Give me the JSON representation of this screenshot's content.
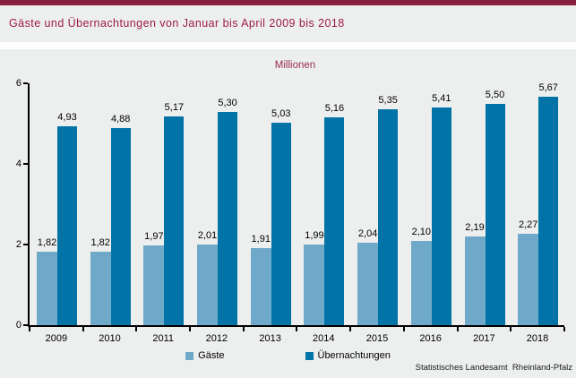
{
  "header": {
    "title": "Gäste und Übernachtungen von Januar bis April 2009 bis 2018"
  },
  "chart_data": {
    "type": "bar",
    "title": "Gäste und Übernachtungen von Januar bis April 2009 bis 2018",
    "unit_label": "Millionen",
    "categories": [
      "2009",
      "2010",
      "2011",
      "2012",
      "2013",
      "2014",
      "2015",
      "2016",
      "2017",
      "2018"
    ],
    "series": [
      {
        "name": "Gäste",
        "color": "#6FA9C9",
        "values": [
          1.82,
          1.82,
          1.97,
          2.01,
          1.91,
          1.99,
          2.04,
          2.1,
          2.19,
          2.27
        ]
      },
      {
        "name": "Übernachtungen",
        "color": "#0173A6",
        "values": [
          4.93,
          4.88,
          5.17,
          5.3,
          5.03,
          5.16,
          5.35,
          5.41,
          5.5,
          5.67
        ]
      }
    ],
    "value_labels": {
      "decimal_separator": ",",
      "decimals": 2
    },
    "xlabel": "",
    "ylabel": "",
    "ylim": [
      0,
      6
    ],
    "yticks": [
      0,
      2,
      4,
      6
    ],
    "grid": false,
    "legend_position": "bottom"
  },
  "footer": {
    "source": "Statistisches Landesamt  Rheinland-Pfalz"
  },
  "colors": {
    "background": "#EDEFEE",
    "accent_bar": "#87203E",
    "title_text": "#9C1A46",
    "unit_text": "#9C2B55",
    "axis": "#000000",
    "series_gaeste": "#6FA9C9",
    "series_uebernachtungen": "#0173A6"
  }
}
